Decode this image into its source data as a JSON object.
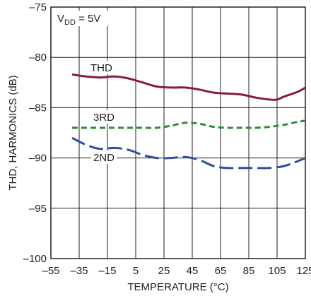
{
  "chart_data": {
    "type": "line",
    "xlabel": "TEMPERATURE (°C)",
    "ylabel": "THD, HARMONICS (dB)",
    "xlim": [
      -55,
      125
    ],
    "ylim": [
      -100,
      -75
    ],
    "x_ticks": [
      -55,
      -35,
      -15,
      5,
      25,
      45,
      65,
      85,
      105,
      125
    ],
    "x_tick_labels": [
      "–55",
      "–35",
      "–15",
      "5",
      "25",
      "45",
      "65",
      "85",
      "105",
      "125"
    ],
    "y_ticks": [
      -100,
      -95,
      -90,
      -85,
      -80,
      -75
    ],
    "y_tick_labels": [
      "–100",
      "–95",
      "–90",
      "–85",
      "–80",
      "–75"
    ],
    "grid": true,
    "annotation": {
      "main": "V",
      "sub": "DD",
      "rest": " = 5V"
    },
    "series": [
      {
        "name": "THD",
        "color": "#8b1a3c",
        "dash": "solid",
        "x": [
          -40,
          -30,
          -20,
          -10,
          0,
          10,
          20,
          30,
          40,
          50,
          60,
          70,
          80,
          90,
          100,
          105,
          110,
          120,
          125
        ],
        "y": [
          -81.7,
          -81.9,
          -82.0,
          -81.9,
          -82.1,
          -82.5,
          -82.9,
          -83.0,
          -83.0,
          -83.2,
          -83.5,
          -83.6,
          -83.7,
          -84.0,
          -84.2,
          -84.2,
          -83.9,
          -83.4,
          -83.0
        ]
      },
      {
        "name": "3RD",
        "color": "#2e8b3d",
        "dash": "dashed",
        "x": [
          -40,
          -30,
          -20,
          -10,
          0,
          10,
          20,
          30,
          40,
          50,
          60,
          70,
          80,
          90,
          100,
          110,
          120,
          125
        ],
        "y": [
          -87.0,
          -87.0,
          -87.0,
          -87.0,
          -87.0,
          -87.0,
          -87.0,
          -86.8,
          -86.5,
          -86.6,
          -86.9,
          -87.0,
          -87.0,
          -87.0,
          -86.9,
          -86.7,
          -86.4,
          -86.3
        ]
      },
      {
        "name": "2ND",
        "color": "#2e4f9c",
        "dash": "dashed",
        "x": [
          -40,
          -30,
          -20,
          -10,
          0,
          10,
          20,
          30,
          40,
          50,
          60,
          70,
          80,
          90,
          100,
          110,
          120,
          125
        ],
        "y": [
          -88.0,
          -88.7,
          -89.1,
          -89.0,
          -89.2,
          -89.7,
          -90.0,
          -90.0,
          -89.9,
          -90.2,
          -90.8,
          -91.0,
          -91.0,
          -91.0,
          -91.0,
          -90.8,
          -90.3,
          -90.0
        ]
      }
    ],
    "series_labels": [
      {
        "text": "THD",
        "x": -27,
        "y": -81.4
      },
      {
        "text": "3RD",
        "x": -25,
        "y": -86.3
      },
      {
        "text": "2ND",
        "x": -25,
        "y": -90.3
      }
    ]
  }
}
